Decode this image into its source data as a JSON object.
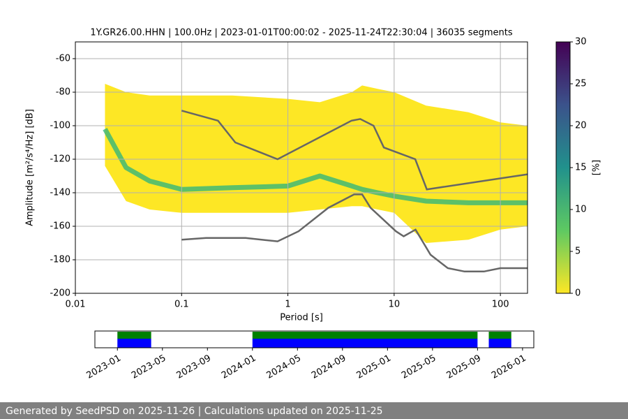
{
  "chart_data": [
    {
      "type": "psd",
      "title": "1Y.GR26.00.HHN | 100.0Hz | 2023-01-01T00:00:02 - 2025-11-24T22:30:04 | 36035 segments",
      "xlabel": "Period [s]",
      "ylabel": "Amplitude [m²/s⁴/Hz] [dB]",
      "xscale": "log",
      "xlim": [
        0.01,
        180
      ],
      "ylim": [
        -200,
        -50
      ],
      "xticks": [
        0.01,
        0.1,
        1,
        10,
        100
      ],
      "yticks": [
        -200,
        -180,
        -160,
        -140,
        -120,
        -100,
        -80,
        -60
      ],
      "grid": true,
      "density": {
        "color": "#fde725",
        "mode_color": "#35b779",
        "x": [
          0.019,
          0.03,
          0.05,
          0.1,
          0.3,
          1,
          2,
          4,
          5,
          7,
          10,
          20,
          50,
          100,
          180
        ],
        "upper": [
          -75,
          -80,
          -82,
          -82,
          -82,
          -84,
          -86,
          -80,
          -76,
          -78,
          -80,
          -88,
          -92,
          -98,
          -100
        ],
        "lower": [
          -124,
          -145,
          -150,
          -152,
          -152,
          -152,
          -150,
          -148,
          -148,
          -150,
          -152,
          -170,
          -168,
          -162,
          -160
        ],
        "mode": [
          -102,
          -125,
          -133,
          -138,
          -137,
          -136,
          -130,
          -136,
          -138,
          -140,
          -142,
          -145,
          -146,
          -146,
          -146
        ]
      },
      "series": [
        {
          "color": "#666666",
          "x": [
            0.1,
            0.22,
            0.32,
            0.8,
            3.97,
            4.8,
            6.4,
            8.0,
            15.8,
            20.3,
            180
          ],
          "values": [
            -91,
            -97,
            -110,
            -120,
            -97,
            -96,
            -100,
            -113,
            -120,
            -138,
            -129
          ]
        },
        {
          "color": "#666666",
          "x": [
            0.1,
            0.17,
            0.4,
            0.8,
            1.26,
            2.4,
            4.2,
            5.0,
            6.0,
            10.4,
            12.3,
            15.9,
            22,
            32,
            46,
            70,
            100,
            155,
            180
          ],
          "values": [
            -168,
            -167,
            -167,
            -169,
            -163,
            -149,
            -141,
            -141,
            -149,
            -163,
            -166,
            -162,
            -177,
            -185,
            -187,
            -187,
            -185,
            -185,
            -185
          ]
        }
      ],
      "colorbar": {
        "label": "[%]",
        "lim": [
          0,
          30
        ],
        "ticks": [
          0,
          5,
          10,
          15,
          20,
          25,
          30
        ]
      }
    },
    {
      "type": "timeline",
      "xlim": [
        "2022-11",
        "2026-02"
      ],
      "xticks": [
        "2023-01",
        "2023-05",
        "2023-09",
        "2024-01",
        "2024-05",
        "2024-09",
        "2025-01",
        "2025-05",
        "2025-09",
        "2026-01"
      ],
      "colors": [
        "#008000",
        "#0000ff"
      ],
      "spans": [
        {
          "start": "2023-01",
          "end": "2023-04"
        },
        {
          "start": "2024-01",
          "end": "2025-09"
        },
        {
          "start": "2025-10",
          "end": "2025-12"
        }
      ]
    }
  ],
  "footer": "Generated by SeedPSD on 2025-11-26 | Calculations updated on 2025-11-25"
}
